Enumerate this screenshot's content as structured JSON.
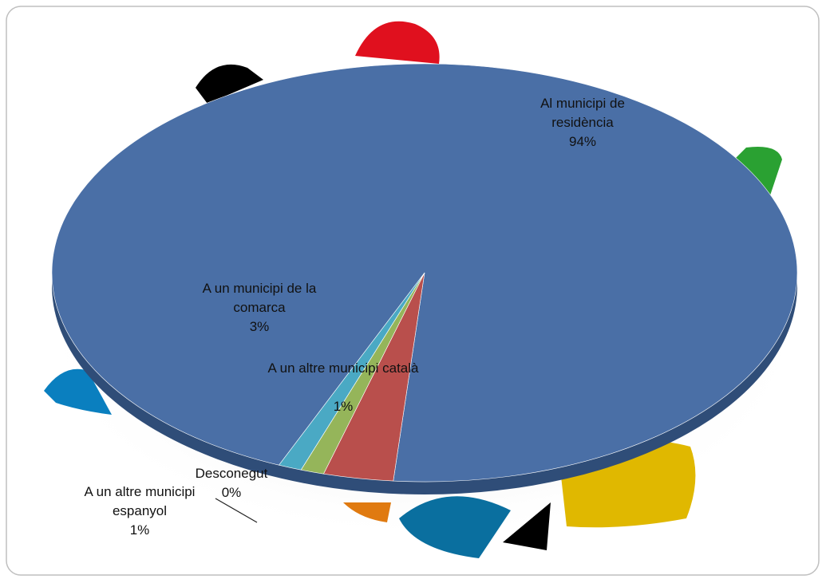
{
  "chart_data": {
    "type": "pie",
    "categories": [
      "Al municipi de residència",
      "A un municipi de la comarca",
      "A un altre municipi català",
      "Desconegut",
      "A un altre municipi espanyol"
    ],
    "values": [
      94,
      3,
      1,
      0,
      1
    ],
    "value_labels": [
      "94%",
      "3%",
      "1%",
      "0%",
      "1%"
    ],
    "colors": [
      "#4a6fa6",
      "#b94f4c",
      "#95b55a",
      "#7c64a0",
      "#4aa9c4"
    ]
  }
}
